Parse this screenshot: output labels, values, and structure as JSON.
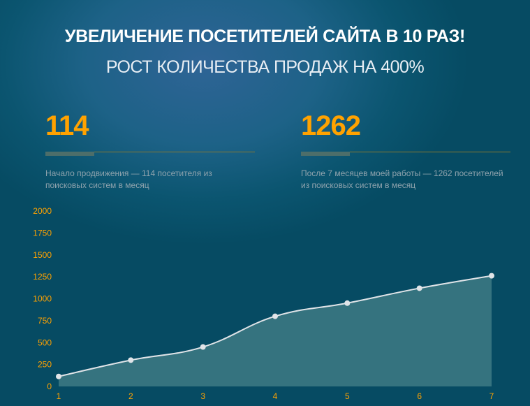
{
  "header": {
    "title": "УВЕЛИЧЕНИЕ ПОСЕТИТЕЛЕЙ САЙТА В 10 РАЗ!",
    "subtitle": "РОСТ КОЛИЧЕСТВА ПРОДАЖ НА 400%"
  },
  "stats": [
    {
      "value": "114",
      "description": "Начало продвижения — 114 посетителя из поисковых систем в месяц"
    },
    {
      "value": "1262",
      "description": "После 7 месяцев моей работы — 1262 посетителей из поисковых систем в месяц"
    }
  ],
  "colors": {
    "accent": "#ffa200",
    "line": "#e0e4e8",
    "fill": "#3e7a84"
  },
  "chart_data": {
    "type": "area",
    "x": [
      1,
      2,
      3,
      4,
      5,
      6,
      7
    ],
    "values": [
      114,
      300,
      450,
      800,
      950,
      1120,
      1262
    ],
    "ylim": [
      0,
      2000
    ],
    "yticks": [
      0,
      250,
      500,
      750,
      1000,
      1250,
      1500,
      1750,
      2000
    ],
    "xticks": [
      "1",
      "2",
      "3",
      "4",
      "5",
      "6",
      "7"
    ],
    "grid": false
  }
}
